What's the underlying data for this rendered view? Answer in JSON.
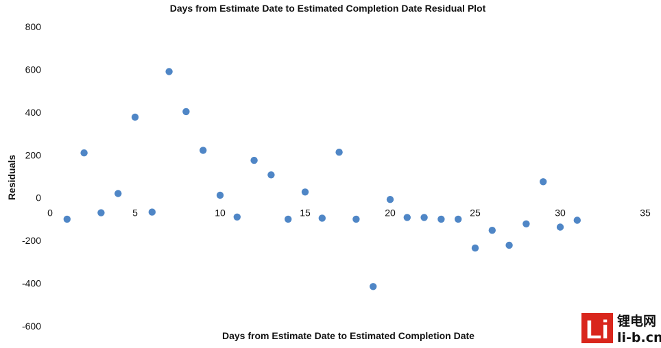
{
  "chart_data": {
    "type": "scatter",
    "title": "Days from Estimate Date to Estimated Completion Date  Residual Plot",
    "xlabel": "Days from Estimate Date to Estimated Completion Date",
    "ylabel": "Residuals",
    "xlim": [
      0,
      35
    ],
    "ylim": [
      -600,
      800
    ],
    "xticks": [
      "0",
      "5",
      "10",
      "15",
      "20",
      "25",
      "30",
      "35"
    ],
    "yticks": [
      "800",
      "600",
      "400",
      "200",
      "0",
      "-200",
      "-400",
      "-600"
    ],
    "grid": false,
    "series": [
      {
        "color": "#4f86c6",
        "points": [
          [
            1,
            -100
          ],
          [
            2,
            210
          ],
          [
            3,
            -70
          ],
          [
            4,
            20
          ],
          [
            5,
            377
          ],
          [
            6,
            -67
          ],
          [
            7,
            590
          ],
          [
            8,
            403
          ],
          [
            9,
            222
          ],
          [
            10,
            12
          ],
          [
            11,
            -90
          ],
          [
            12,
            175
          ],
          [
            13,
            107
          ],
          [
            14,
            -100
          ],
          [
            15,
            27
          ],
          [
            16,
            -95
          ],
          [
            17,
            213
          ],
          [
            18,
            -100
          ],
          [
            19,
            -415
          ],
          [
            20,
            -8
          ],
          [
            21,
            -92
          ],
          [
            22,
            -92
          ],
          [
            23,
            -100
          ],
          [
            24,
            -100
          ],
          [
            25,
            -235
          ],
          [
            26,
            -152
          ],
          [
            27,
            -222
          ],
          [
            28,
            -122
          ],
          [
            29,
            75
          ],
          [
            30,
            -137
          ],
          [
            31,
            -105
          ]
        ]
      }
    ]
  },
  "watermark": {
    "logo_letters": "Li",
    "text_top": "锂电网",
    "text_bottom": "li-b.cn",
    "color": "#d9261c"
  }
}
